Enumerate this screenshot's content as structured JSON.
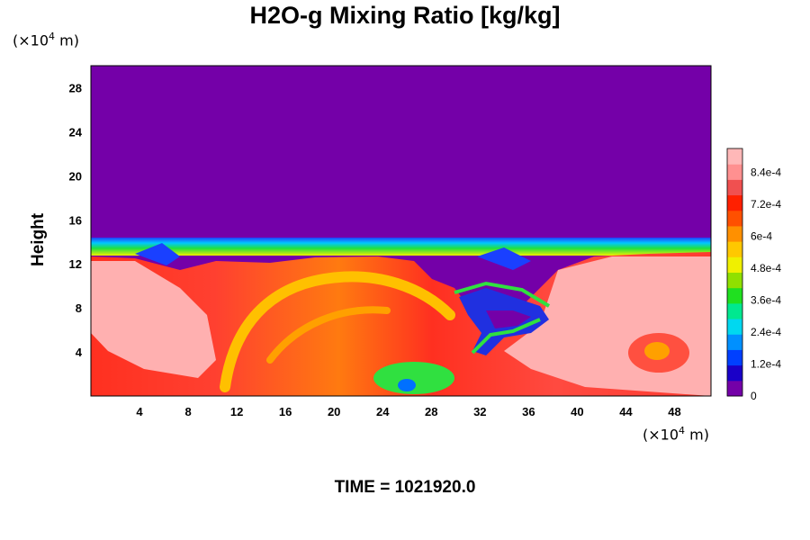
{
  "chart_data": {
    "type": "heatmap",
    "title": "H2O-g Mixing Ratio [kg/kg]",
    "ylabel": "Height",
    "x_unit_prefix": "(×10",
    "x_unit_exp": "4",
    "x_unit_suffix": " m)",
    "y_unit_prefix": "(×10",
    "y_unit_exp": "4",
    "y_unit_suffix": " m)",
    "xlim": [
      0,
      51
    ],
    "ylim": [
      0,
      30
    ],
    "xticks": [
      4,
      8,
      12,
      16,
      20,
      24,
      28,
      32,
      36,
      40,
      44,
      48
    ],
    "xtick_labels": [
      "4",
      "8",
      "12",
      "16",
      "20",
      "24",
      "28",
      "32",
      "36",
      "40",
      "44",
      "48"
    ],
    "yticks": [
      4,
      8,
      12,
      16,
      20,
      24,
      28
    ],
    "ytick_labels": [
      "4",
      "8",
      "12",
      "16",
      "20",
      "24",
      "28"
    ],
    "colorbar": {
      "range": [
        0,
        0.00093
      ],
      "ticks": [
        0,
        0.00012,
        0.00024,
        0.00036,
        0.00048,
        0.0006,
        0.00072,
        0.00084
      ],
      "tick_labels": [
        "0",
        "1.2e-4",
        "2.4e-4",
        "3.6e-4",
        "4.8e-4",
        "6e-4",
        "7.2e-4",
        "8.4e-4"
      ],
      "colors": [
        "#7400a8",
        "#1a00c8",
        "#0040ff",
        "#0090ff",
        "#00d8f0",
        "#00e890",
        "#20e020",
        "#90e000",
        "#f0f000",
        "#ffc800",
        "#ff9000",
        "#ff5000",
        "#ff2000",
        "#f05050",
        "#ff9090",
        "#ffb8b8"
      ]
    },
    "time_label": "TIME = 1021920.0"
  }
}
